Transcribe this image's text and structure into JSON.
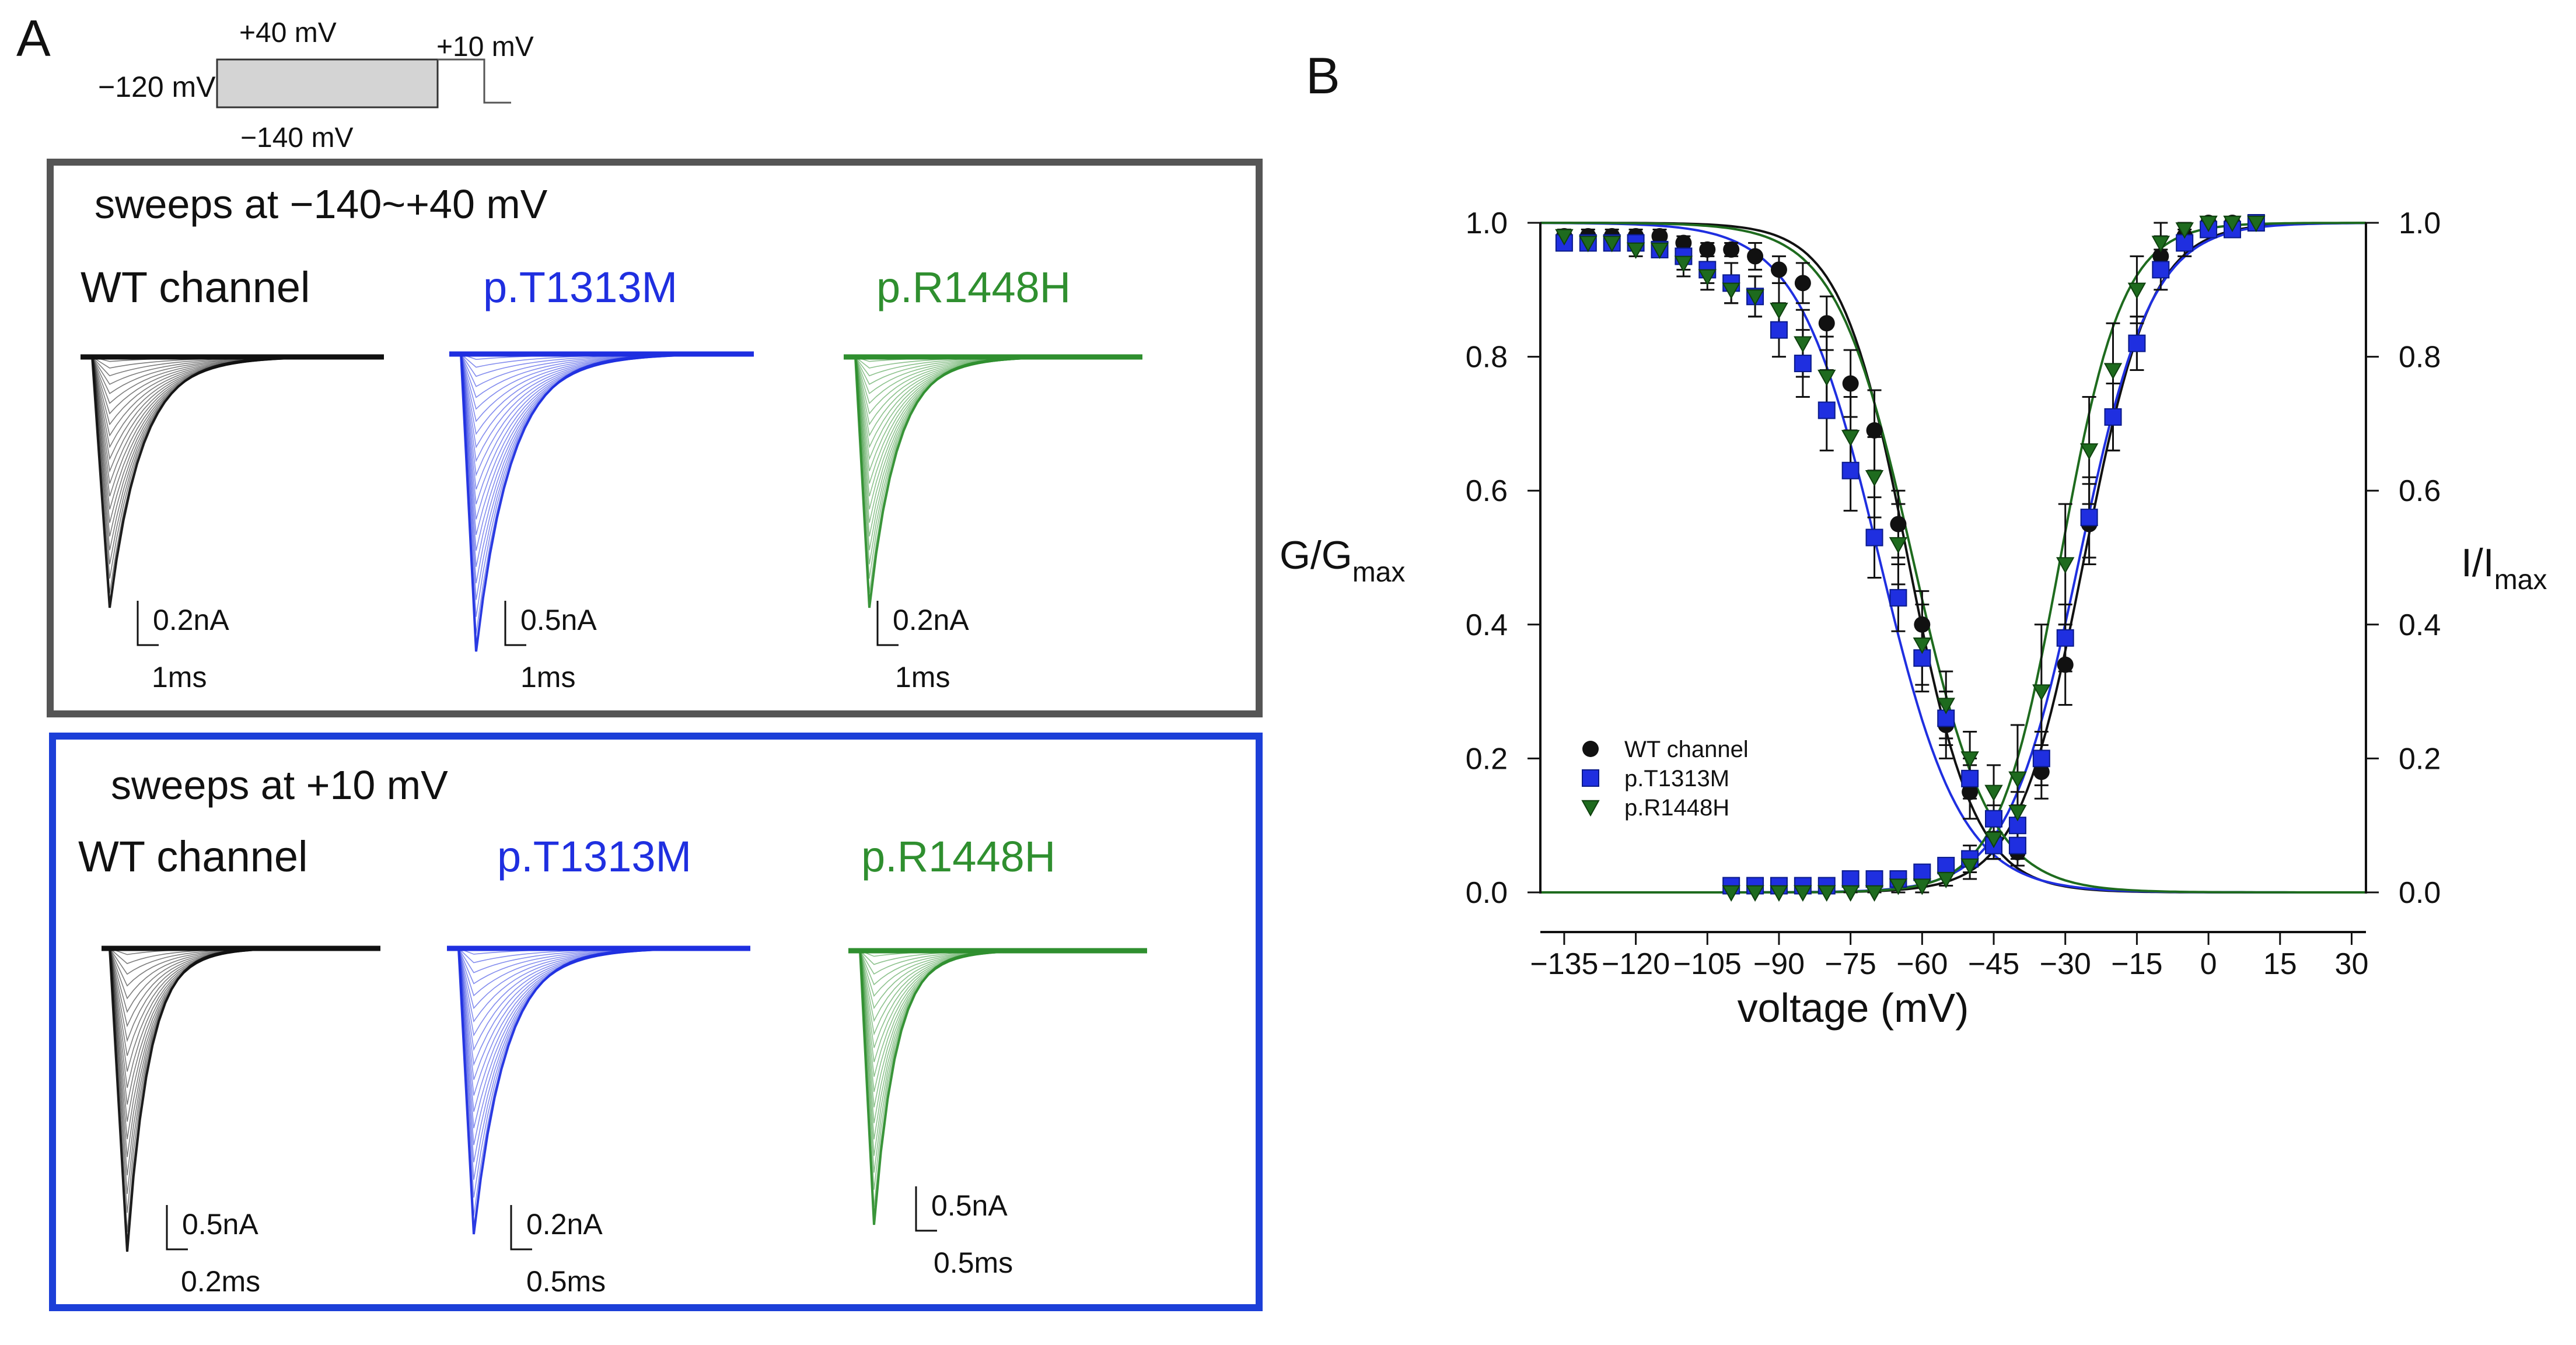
{
  "panel_a": {
    "label": "A",
    "protocol": {
      "holding": "−120 mV",
      "top": "+40 mV",
      "bottom": "−140 mV",
      "test": "+10 mV"
    },
    "box1": {
      "title": "sweeps at −140~+40 mV",
      "border_color": "#555555",
      "traces": [
        {
          "name": "WT channel",
          "color": "#111111",
          "scale_y": "0.2nA",
          "scale_x": "1ms"
        },
        {
          "name": "p.T1313M",
          "color": "#1f2fe0",
          "scale_y": "0.5nA",
          "scale_x": "1ms"
        },
        {
          "name": "p.R1448H",
          "color": "#2f8f2f",
          "scale_y": "0.2nA",
          "scale_x": "1ms"
        }
      ]
    },
    "box2": {
      "title": "sweeps at +10 mV",
      "border_color": "#1c3fd8",
      "traces": [
        {
          "name": "WT channel",
          "color": "#111111",
          "scale_y": "0.5nA",
          "scale_x": "0.2ms"
        },
        {
          "name": "p.T1313M",
          "color": "#1f2fe0",
          "scale_y": "0.2nA",
          "scale_x": "0.5ms"
        },
        {
          "name": "p.R1448H",
          "color": "#2f8f2f",
          "scale_y": "0.5nA",
          "scale_x": "0.5ms"
        }
      ]
    }
  },
  "panel_b": {
    "label": "B"
  },
  "chart_data": {
    "type": "scatter",
    "title": "",
    "xlabel": "voltage (mV)",
    "ylabel_left": "G/G",
    "ylabel_left_sub": "max",
    "ylabel_right": "I/I",
    "ylabel_right_sub": "max",
    "xlim": [
      -140,
      33
    ],
    "ylim": [
      0,
      1.0
    ],
    "x_ticks": [
      -135,
      -120,
      -105,
      -90,
      -75,
      -60,
      -45,
      -30,
      -15,
      0,
      15,
      30
    ],
    "x_tick_labels": [
      "−135",
      "−120",
      "−105",
      "−90",
      "−75",
      "−60",
      "−45",
      "−30",
      "−15",
      "0",
      "15",
      "30"
    ],
    "y_ticks": [
      0.0,
      0.2,
      0.4,
      0.6,
      0.8,
      1.0
    ],
    "y_tick_labels": [
      "0.0",
      "0.2",
      "0.4",
      "0.6",
      "0.8",
      "1.0"
    ],
    "legend": {
      "position": "lower-left",
      "entries": [
        "WT channel",
        "p.T1313M",
        "p.R1448H"
      ]
    },
    "series": [
      {
        "name": "WT channel",
        "color": "#111111",
        "marker": "circle",
        "inactivation": {
          "x": [
            -135,
            -130,
            -125,
            -120,
            -115,
            -110,
            -105,
            -100,
            -95,
            -90,
            -85,
            -80,
            -75,
            -70,
            -65,
            -60,
            -55,
            -50,
            -45,
            -40
          ],
          "y": [
            0.98,
            0.98,
            0.98,
            0.98,
            0.98,
            0.97,
            0.96,
            0.96,
            0.95,
            0.93,
            0.91,
            0.85,
            0.76,
            0.69,
            0.55,
            0.4,
            0.25,
            0.15,
            0.08,
            0.06
          ],
          "err": [
            0.01,
            0.01,
            0.01,
            0.01,
            0.01,
            0.01,
            0.01,
            0.01,
            0.02,
            0.02,
            0.03,
            0.04,
            0.05,
            0.06,
            0.05,
            0.05,
            0.05,
            0.04,
            0.02,
            0.02
          ]
        },
        "activation": {
          "x": [
            -100,
            -95,
            -90,
            -85,
            -80,
            -75,
            -70,
            -65,
            -60,
            -55,
            -50,
            -45,
            -40,
            -35,
            -30,
            -25,
            -20,
            -15,
            -10,
            -5,
            0,
            5,
            10
          ],
          "y": [
            0.01,
            0.01,
            0.01,
            0.01,
            0.01,
            0.02,
            0.02,
            0.02,
            0.03,
            0.04,
            0.05,
            0.07,
            0.1,
            0.18,
            0.34,
            0.55,
            0.71,
            0.82,
            0.95,
            0.98,
            1.0,
            1.0,
            1.0
          ],
          "err": [
            0.01,
            0.01,
            0.01,
            0.01,
            0.01,
            0.01,
            0.01,
            0.01,
            0.01,
            0.01,
            0.02,
            0.02,
            0.03,
            0.04,
            0.06,
            0.06,
            0.05,
            0.04,
            0.03,
            0.02,
            0.01,
            0.01,
            0.01
          ]
        },
        "fit_inactivation": {
          "v_half": -63,
          "k": 7.0
        },
        "fit_activation": {
          "v_half": -26,
          "k": 7.0
        }
      },
      {
        "name": "p.T1313M",
        "color": "#1f2fe0",
        "marker": "square",
        "inactivation": {
          "x": [
            -135,
            -130,
            -125,
            -120,
            -115,
            -110,
            -105,
            -100,
            -95,
            -90,
            -85,
            -80,
            -75,
            -70,
            -65,
            -60,
            -55,
            -50,
            -45,
            -40
          ],
          "y": [
            0.97,
            0.97,
            0.97,
            0.97,
            0.96,
            0.95,
            0.93,
            0.91,
            0.89,
            0.84,
            0.79,
            0.72,
            0.63,
            0.53,
            0.44,
            0.35,
            0.26,
            0.17,
            0.11,
            0.07
          ],
          "err": [
            0.01,
            0.01,
            0.01,
            0.01,
            0.01,
            0.02,
            0.02,
            0.03,
            0.03,
            0.04,
            0.05,
            0.06,
            0.06,
            0.06,
            0.05,
            0.05,
            0.04,
            0.03,
            0.02,
            0.02
          ]
        },
        "activation": {
          "x": [
            -100,
            -95,
            -90,
            -85,
            -80,
            -75,
            -70,
            -65,
            -60,
            -55,
            -50,
            -45,
            -40,
            -35,
            -30,
            -25,
            -20,
            -15,
            -10,
            -5,
            0,
            5,
            10
          ],
          "y": [
            0.01,
            0.01,
            0.01,
            0.01,
            0.01,
            0.02,
            0.02,
            0.02,
            0.03,
            0.04,
            0.05,
            0.07,
            0.1,
            0.2,
            0.38,
            0.56,
            0.71,
            0.82,
            0.93,
            0.97,
            0.99,
            0.99,
            1.0
          ],
          "err": [
            0.01,
            0.01,
            0.01,
            0.01,
            0.01,
            0.01,
            0.01,
            0.01,
            0.01,
            0.01,
            0.01,
            0.02,
            0.03,
            0.04,
            0.05,
            0.06,
            0.05,
            0.04,
            0.03,
            0.02,
            0.01,
            0.01,
            0.01
          ]
        },
        "fit_inactivation": {
          "v_half": -69,
          "k": 8.5
        },
        "fit_activation": {
          "v_half": -27,
          "k": 7.5
        }
      },
      {
        "name": "p.R1448H",
        "color": "#1e6b1e",
        "marker": "triangle-down",
        "inactivation": {
          "x": [
            -135,
            -130,
            -125,
            -120,
            -115,
            -110,
            -105,
            -100,
            -95,
            -90,
            -85,
            -80,
            -75,
            -70,
            -65,
            -60,
            -55,
            -50,
            -45,
            -40
          ],
          "y": [
            0.98,
            0.97,
            0.97,
            0.96,
            0.96,
            0.94,
            0.92,
            0.9,
            0.89,
            0.87,
            0.82,
            0.77,
            0.68,
            0.62,
            0.52,
            0.37,
            0.28,
            0.2,
            0.15,
            0.12
          ],
          "err": [
            0.01,
            0.01,
            0.01,
            0.01,
            0.01,
            0.02,
            0.02,
            0.02,
            0.03,
            0.04,
            0.05,
            0.06,
            0.06,
            0.06,
            0.06,
            0.06,
            0.05,
            0.04,
            0.04,
            0.03
          ]
        },
        "activation": {
          "x": [
            -100,
            -95,
            -90,
            -85,
            -80,
            -75,
            -70,
            -65,
            -60,
            -55,
            -50,
            -45,
            -40,
            -35,
            -30,
            -25,
            -20,
            -15,
            -10,
            -5,
            0,
            5,
            10
          ],
          "y": [
            0.0,
            0.0,
            0.0,
            0.0,
            0.0,
            0.0,
            0.0,
            0.01,
            0.01,
            0.02,
            0.04,
            0.08,
            0.17,
            0.3,
            0.49,
            0.66,
            0.78,
            0.9,
            0.97,
            0.99,
            1.0,
            1.0,
            1.0
          ],
          "err": [
            0.01,
            0.01,
            0.01,
            0.01,
            0.01,
            0.01,
            0.01,
            0.01,
            0.01,
            0.01,
            0.02,
            0.03,
            0.08,
            0.1,
            0.09,
            0.08,
            0.07,
            0.05,
            0.03,
            0.02,
            0.01,
            0.01,
            0.01
          ]
        },
        "fit_inactivation": {
          "v_half": -62,
          "k": 8.0
        },
        "fit_activation": {
          "v_half": -31,
          "k": 6.5
        }
      }
    ]
  }
}
